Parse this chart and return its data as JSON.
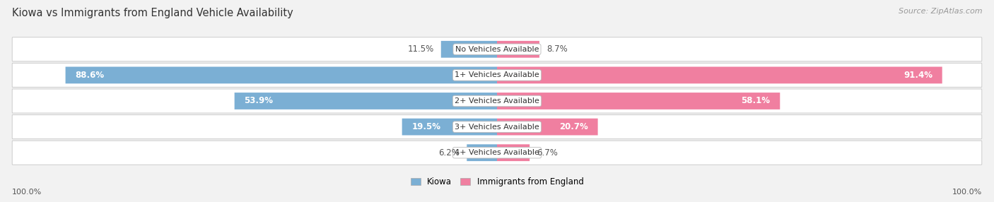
{
  "title": "Kiowa vs Immigrants from England Vehicle Availability",
  "source": "Source: ZipAtlas.com",
  "categories": [
    "No Vehicles Available",
    "1+ Vehicles Available",
    "2+ Vehicles Available",
    "3+ Vehicles Available",
    "4+ Vehicles Available"
  ],
  "kiowa_values": [
    11.5,
    88.6,
    53.9,
    19.5,
    6.2
  ],
  "england_values": [
    8.7,
    91.4,
    58.1,
    20.7,
    6.7
  ],
  "kiowa_color": "#7bafd4",
  "england_color": "#f07fa0",
  "kiowa_label": "Kiowa",
  "england_label": "Immigrants from England",
  "left_axis_label": "100.0%",
  "right_axis_label": "100.0%",
  "background_color": "#f2f2f2",
  "row_bg_color": "#ffffff",
  "title_fontsize": 10.5,
  "source_fontsize": 8,
  "bar_label_fontsize": 8.5,
  "category_fontsize": 8,
  "max_value": 100.0,
  "bar_height": 0.65
}
